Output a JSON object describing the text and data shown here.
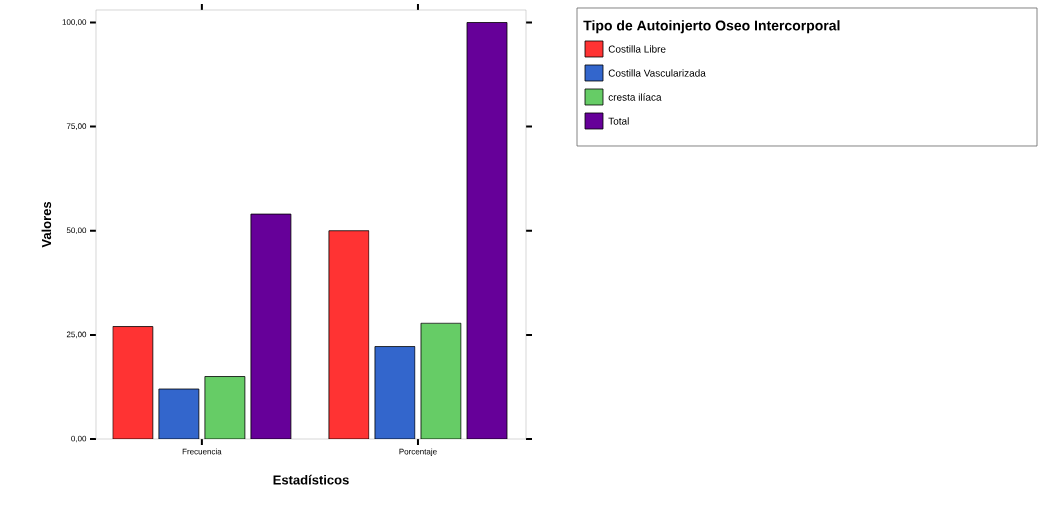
{
  "chart_data": {
    "type": "bar",
    "xlabel": "Estadísticos",
    "ylabel": "Valores",
    "categories": [
      "Frecuencia",
      "Porcentaje"
    ],
    "legend_title": "Tipo de Autoinjerto Oseo Intercorporal",
    "series": [
      {
        "name": "Costilla Libre",
        "color": "#ff3333",
        "values": [
          27,
          50
        ]
      },
      {
        "name": "Costilla Vascularizada",
        "color": "#3366cc",
        "values": [
          12,
          22.2
        ]
      },
      {
        "name": "cresta ilíaca",
        "color": "#66cc66",
        "values": [
          15,
          27.8
        ]
      },
      {
        "name": "Total",
        "color": "#660099",
        "values": [
          54,
          100
        ]
      }
    ],
    "ylim": [
      0,
      103
    ],
    "yticks": [
      {
        "value": 0,
        "label": "0,00"
      },
      {
        "value": 25,
        "label": "25,00"
      },
      {
        "value": 50,
        "label": "50,00"
      },
      {
        "value": 75,
        "label": "75,00"
      },
      {
        "value": 100,
        "label": "100,00"
      }
    ],
    "legend": "top right",
    "grid": false
  }
}
